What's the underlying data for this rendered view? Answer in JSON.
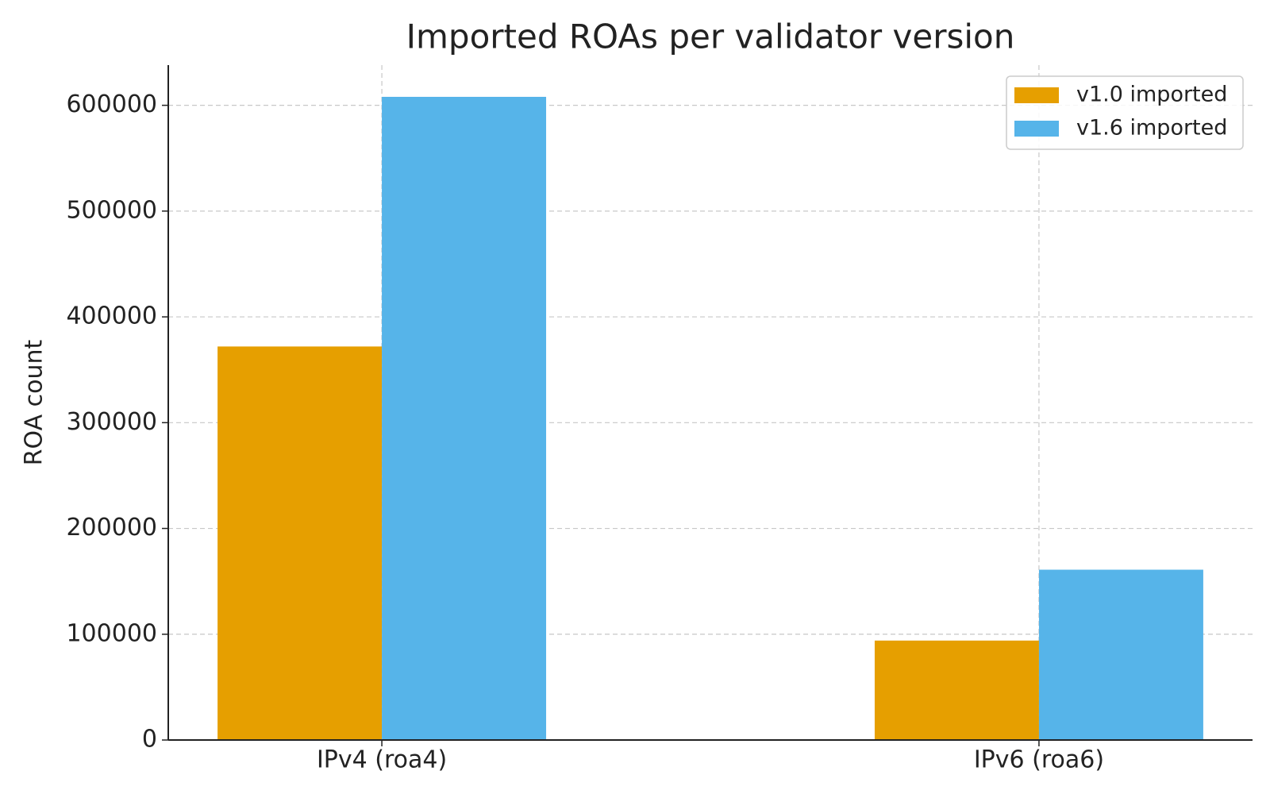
{
  "chart_data": {
    "type": "bar",
    "title": "Imported ROAs per validator version",
    "ylabel": "ROA count",
    "categories": [
      "IPv4 (roa4)",
      "IPv6 (roa6)"
    ],
    "series": [
      {
        "name": "v1.0 imported",
        "color": "#e69f00",
        "values": [
          372000,
          94000
        ]
      },
      {
        "name": "v1.6 imported",
        "color": "#56b4e9",
        "values": [
          608000,
          161000
        ]
      }
    ],
    "ylim": [
      0,
      638000
    ],
    "yticks": [
      0,
      100000,
      200000,
      300000,
      400000,
      500000,
      600000
    ],
    "grid": true,
    "legend": "upper right"
  }
}
